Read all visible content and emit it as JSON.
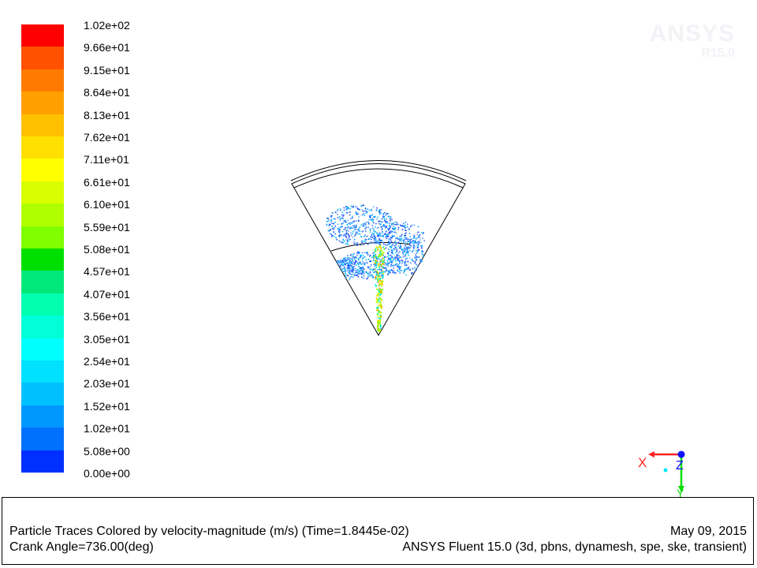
{
  "colorbar": {
    "labels": [
      "1.02e+02",
      "9.66e+01",
      "9.15e+01",
      "8.64e+01",
      "8.13e+01",
      "7.62e+01",
      "7.11e+01",
      "6.61e+01",
      "6.10e+01",
      "5.59e+01",
      "5.08e+01",
      "4.57e+01",
      "4.07e+01",
      "3.56e+01",
      "3.05e+01",
      "2.54e+01",
      "2.03e+01",
      "1.52e+01",
      "1.02e+01",
      "5.08e+00",
      "0.00e+00"
    ],
    "colors": [
      "#ff0000",
      "#ff5100",
      "#ff7a00",
      "#ffa000",
      "#ffc000",
      "#ffe000",
      "#ffff00",
      "#d8ff00",
      "#b0ff00",
      "#7fff00",
      "#00e000",
      "#00e87a",
      "#00ffb0",
      "#00ffd8",
      "#00ffff",
      "#00e0ff",
      "#00c0ff",
      "#0098ff",
      "#0070ff",
      "#0030ff"
    ]
  },
  "watermark": {
    "name": "ANSYS",
    "version": "R15.0"
  },
  "axes": {
    "x": "X",
    "y": "Y",
    "z": "Z",
    "x_color": "#ff2020",
    "y_color": "#00dd00",
    "z_color": "#1010ff"
  },
  "info": {
    "title": "Particle Traces Colored by velocity-magnitude (m/s)  (Time=1.8445e-02)",
    "date": "May 09, 2015",
    "crank_angle": "Crank Angle=736.00(deg)",
    "solver": "ANSYS Fluent 15.0 (3d, pbns, dynamesh, spe, ske, transient)"
  }
}
